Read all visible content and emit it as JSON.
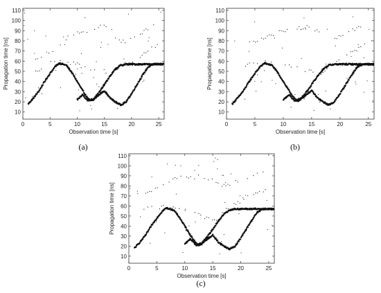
{
  "chart_data": [
    {
      "type": "scatter",
      "caption": "(a)",
      "xlabel": "Observation time [s]",
      "ylabel": "Propagation time [ns]",
      "xlim": [
        0,
        26
      ],
      "ylim": [
        3,
        112
      ],
      "xticks": [
        0,
        5,
        10,
        15,
        20,
        25
      ],
      "yticks": [
        10,
        20,
        30,
        40,
        50,
        60,
        70,
        80,
        90,
        100,
        110
      ],
      "grid": false,
      "marker_color": "#111111",
      "series": [
        {
          "x": [
            1,
            2,
            3,
            4,
            5,
            6,
            6.7,
            8,
            9,
            10,
            11,
            12,
            12.5,
            13,
            14,
            15,
            16,
            17,
            18,
            19,
            20,
            21,
            22,
            23,
            24,
            25,
            26
          ],
          "y": [
            18,
            24,
            31,
            40,
            48,
            55,
            58,
            56,
            49,
            40,
            31,
            23,
            21,
            22,
            27,
            31,
            24,
            20,
            17,
            20,
            28,
            37,
            46,
            54,
            57,
            57,
            57
          ]
        },
        {
          "x": [
            10,
            11,
            12,
            13,
            14,
            15,
            16,
            17,
            18,
            19,
            20,
            21,
            22,
            23,
            24,
            25,
            26
          ],
          "y": [
            22,
            27,
            21,
            23,
            29,
            37,
            45,
            52,
            56,
            57,
            57,
            57,
            57,
            57,
            57,
            57,
            57
          ]
        },
        {
          "x": [
            2,
            3,
            4,
            5,
            6,
            7,
            8,
            9,
            10,
            11,
            12,
            13,
            14,
            15,
            16,
            17,
            18,
            19,
            20,
            21,
            22,
            23,
            24,
            25
          ],
          "y": [
            48,
            52,
            56,
            58,
            59,
            60,
            60,
            60,
            58,
            54,
            52,
            51,
            51,
            50,
            45,
            52,
            55,
            58,
            60,
            62,
            66,
            70,
            74,
            76
          ]
        },
        {
          "x": [
            2,
            3,
            4,
            5,
            6,
            7,
            8,
            9,
            10,
            12,
            13,
            14,
            16,
            17,
            18,
            19,
            20,
            21,
            22,
            23,
            24,
            25
          ],
          "y": [
            60,
            63,
            65,
            68,
            72,
            76,
            82,
            86,
            88,
            90,
            92,
            94,
            94,
            84,
            80,
            78,
            82,
            86,
            88,
            92,
            96,
            99
          ]
        }
      ]
    },
    {
      "type": "scatter",
      "caption": "(b)",
      "xlabel": "Observation time [s]",
      "ylabel": "Propagation time [ns]",
      "xlim": [
        0,
        26
      ],
      "ylim": [
        3,
        112
      ],
      "xticks": [
        0,
        5,
        10,
        15,
        20,
        25
      ],
      "yticks": [
        10,
        20,
        30,
        40,
        50,
        60,
        70,
        80,
        90,
        100,
        110
      ],
      "grid": false,
      "marker_color": "#111111",
      "series": [
        {
          "x": [
            1,
            2,
            3,
            4,
            5,
            6,
            6.7,
            8,
            9,
            10,
            11,
            12,
            12.5,
            13,
            14,
            15,
            16,
            17,
            18,
            19,
            20,
            21,
            22,
            23,
            24,
            25,
            26
          ],
          "y": [
            18,
            24,
            31,
            40,
            48,
            55,
            58,
            56,
            49,
            40,
            31,
            23,
            21,
            22,
            27,
            31,
            24,
            20,
            17,
            20,
            28,
            37,
            46,
            54,
            57,
            57,
            57
          ]
        },
        {
          "x": [
            10,
            11,
            12,
            13,
            14,
            15,
            16,
            17,
            18,
            19,
            20,
            21,
            22,
            23,
            24,
            25,
            26
          ],
          "y": [
            22,
            27,
            21,
            23,
            29,
            37,
            45,
            52,
            56,
            57,
            57,
            57,
            57,
            57,
            57,
            57,
            57
          ]
        },
        {
          "x": [
            3,
            5,
            7,
            9,
            11,
            13,
            15,
            17,
            19,
            21,
            23,
            25
          ],
          "y": [
            55,
            58,
            60,
            59,
            55,
            52,
            50,
            48,
            58,
            64,
            72,
            78
          ]
        },
        {
          "x": [
            3,
            6,
            9,
            12,
            15,
            18,
            21,
            24
          ],
          "y": [
            75,
            82,
            88,
            92,
            94,
            80,
            86,
            96
          ]
        }
      ]
    },
    {
      "type": "scatter",
      "caption": "(c)",
      "xlabel": "Observation time [s]",
      "ylabel": "Propagation time [ns]",
      "xlim": [
        0,
        26
      ],
      "ylim": [
        3,
        112
      ],
      "xticks": [
        0,
        5,
        10,
        15,
        20,
        25
      ],
      "yticks": [
        10,
        20,
        30,
        40,
        50,
        60,
        70,
        80,
        90,
        100,
        110
      ],
      "grid": false,
      "marker_color": "#111111",
      "series": [
        {
          "x": [
            1,
            2,
            3,
            4,
            5,
            6,
            6.7,
            8,
            9,
            10,
            11,
            12,
            12.5,
            13,
            14,
            15,
            16,
            17,
            18,
            19,
            20,
            21,
            22,
            23,
            24,
            25,
            26
          ],
          "y": [
            18,
            24,
            31,
            40,
            48,
            55,
            58,
            56,
            49,
            40,
            31,
            23,
            21,
            22,
            27,
            31,
            24,
            20,
            17,
            20,
            28,
            37,
            46,
            54,
            57,
            57,
            57
          ]
        },
        {
          "x": [
            10,
            11,
            12,
            13,
            14,
            15,
            16,
            17,
            18,
            19,
            20,
            21,
            22,
            23,
            24,
            25,
            26
          ],
          "y": [
            22,
            27,
            21,
            23,
            29,
            37,
            45,
            52,
            56,
            57,
            57,
            57,
            57,
            57,
            57,
            57,
            57
          ]
        },
        {
          "x": [
            2,
            3,
            4,
            5,
            6,
            7,
            8,
            9,
            10,
            11,
            12,
            13,
            14,
            15,
            16,
            17,
            18,
            19,
            20,
            21,
            22,
            23,
            24,
            25
          ],
          "y": [
            55,
            57,
            58,
            58,
            59,
            59,
            59,
            58,
            56,
            54,
            52,
            50,
            48,
            46,
            44,
            56,
            60,
            62,
            64,
            68,
            70,
            72,
            75,
            76
          ]
        },
        {
          "x": [
            3,
            5,
            7,
            9,
            11,
            13,
            15,
            17,
            19,
            21,
            23,
            25
          ],
          "y": [
            72,
            78,
            84,
            88,
            88,
            90,
            86,
            80,
            84,
            88,
            92,
            96
          ]
        }
      ]
    }
  ]
}
